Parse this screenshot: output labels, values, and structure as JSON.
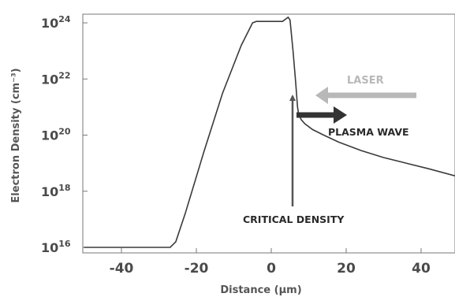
{
  "chart_data": {
    "type": "line",
    "title": "",
    "xlabel": "Distance (μm)",
    "ylabel": "Electron Density (cm⁻³)",
    "y_scale": "log",
    "xlim": [
      -50,
      50
    ],
    "ylim_exponent": [
      16,
      24.3
    ],
    "x_ticks": [
      {
        "value": -40,
        "label": "-40"
      },
      {
        "value": -20,
        "label": "-20"
      },
      {
        "value": 0,
        "label": "0"
      },
      {
        "value": 20,
        "label": "20"
      },
      {
        "value": 40,
        "label": "40"
      }
    ],
    "y_ticks": [
      {
        "exponent": 16,
        "base": "10",
        "exp": "16"
      },
      {
        "exponent": 18,
        "base": "10",
        "exp": "18"
      },
      {
        "exponent": 20,
        "base": "10",
        "exp": "20"
      },
      {
        "exponent": 22,
        "base": "10",
        "exp": "22"
      },
      {
        "exponent": 24,
        "base": "10",
        "exp": "24"
      }
    ],
    "series": [
      {
        "color": "#3a3a3a",
        "points": [
          [
            -50,
            16.0
          ],
          [
            -27,
            16.0
          ],
          [
            -25.5,
            16.2
          ],
          [
            -23,
            17.2
          ],
          [
            -18,
            19.4
          ],
          [
            -13,
            21.5
          ],
          [
            -8,
            23.2
          ],
          [
            -5,
            24.0
          ],
          [
            -4,
            24.05
          ],
          [
            0,
            24.05
          ],
          [
            3,
            24.05
          ],
          [
            4.5,
            24.2
          ],
          [
            5,
            24.1
          ],
          [
            5.8,
            23.0
          ],
          [
            6.5,
            21.9
          ],
          [
            7,
            21.0
          ],
          [
            7.3,
            20.75
          ],
          [
            8,
            20.55
          ],
          [
            9,
            20.4
          ],
          [
            11,
            20.2
          ],
          [
            14,
            20.0
          ],
          [
            18,
            19.75
          ],
          [
            24,
            19.45
          ],
          [
            30,
            19.2
          ],
          [
            36,
            19.0
          ],
          [
            42,
            18.8
          ],
          [
            50,
            18.55
          ]
        ]
      }
    ],
    "annotations": [
      {
        "text": "LASER",
        "color": "#b8b8b8",
        "arrow": "left"
      },
      {
        "text": "PLASMA WAVE",
        "color": "#2a2a2a",
        "arrow": "right"
      },
      {
        "text": "CRITICAL DENSITY",
        "color": "#2a2a2a",
        "arrow": "up"
      }
    ],
    "grid": false
  }
}
